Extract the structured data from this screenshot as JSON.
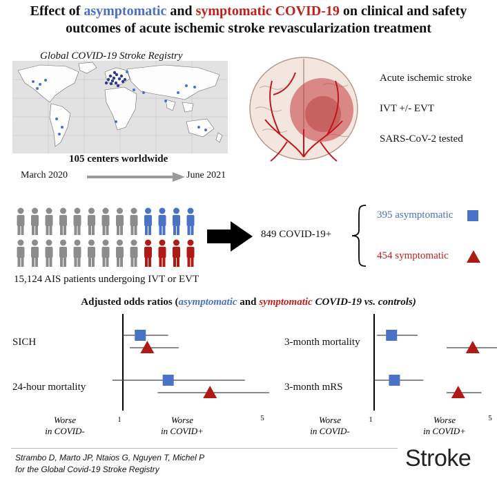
{
  "title": {
    "line1_prefix": "Effect of ",
    "line1_asym": "asymptomatic",
    "line1_and": " and ",
    "line1_sym": "symptomatic COVID-19",
    "line1_suffix": " on clinical and safety",
    "line2": "outcomes of acute ischemic stroke revascularization treatment"
  },
  "registry": {
    "title": "Global COVID-19 Stroke Registry",
    "centers": "105 centers worldwide",
    "start": "March 2020",
    "end": "June 2021"
  },
  "features": [
    "Acute ischemic stroke",
    "IVT +/- EVT",
    "SARS-CoV-2 tested"
  ],
  "cohort": {
    "patients": "15,124 AIS patients undergoing IVT or EVT",
    "covid": "849 COVID-19+",
    "asymptomatic": "395 asymptomatic",
    "symptomatic": "454 symptomatic"
  },
  "aor": {
    "prefix": "Adjusted odds ratios (",
    "asym": "asymptomatic",
    "and": " and ",
    "sym": "symptomatic",
    "suffix": " COVID-19 vs. controls)"
  },
  "colors": {
    "asymptomatic": "#4a72c7",
    "symptomatic": "#b01a14"
  },
  "chart_data": [
    {
      "type": "forest",
      "outcomes": [
        "SICH",
        "24-hour mortality"
      ],
      "x_ticks": [
        "1",
        "5"
      ],
      "axis_left": [
        "Worse",
        "in COVID-"
      ],
      "axis_right": [
        "Worse",
        "in COVID+"
      ],
      "xlim": [
        0.5,
        5.5
      ],
      "ref": 1,
      "series": [
        {
          "group": "asymptomatic",
          "marker": "square",
          "points": [
            {
              "or": 1.5,
              "lo": 1.0,
              "hi": 2.3
            },
            {
              "or": 2.3,
              "lo": 0.7,
              "hi": 4.5
            }
          ]
        },
        {
          "group": "symptomatic",
          "marker": "triangle",
          "points": [
            {
              "or": 1.7,
              "lo": 1.2,
              "hi": 2.6
            },
            {
              "or": 3.5,
              "lo": 2.0,
              "hi": 5.5
            }
          ]
        }
      ]
    },
    {
      "type": "forest",
      "outcomes": [
        "3-month mortality",
        "3-month mRS"
      ],
      "x_ticks": [
        "1",
        "5"
      ],
      "axis_left": [
        "Worse",
        "in COVID-"
      ],
      "axis_right": [
        "Worse",
        "in COVID+"
      ],
      "xlim": [
        0.5,
        5.5
      ],
      "ref": 1,
      "series": [
        {
          "group": "asymptomatic",
          "marker": "square",
          "points": [
            {
              "or": 1.6,
              "lo": 1.1,
              "hi": 2.5
            },
            {
              "or": 1.7,
              "lo": 1.0,
              "hi": 2.7
            }
          ]
        },
        {
          "group": "symptomatic",
          "marker": "triangle",
          "points": [
            {
              "or": 4.4,
              "lo": 3.5,
              "hi": 5.5
            },
            {
              "or": 3.9,
              "lo": 3.5,
              "hi": 4.7
            }
          ]
        }
      ]
    }
  ],
  "citation": {
    "line1": "Strambo D, Marto JP, Ntaios G, Nguyen T, Michel P",
    "line2": "for the Global Covid-19 Stroke Registry"
  },
  "logo": "Stroke"
}
